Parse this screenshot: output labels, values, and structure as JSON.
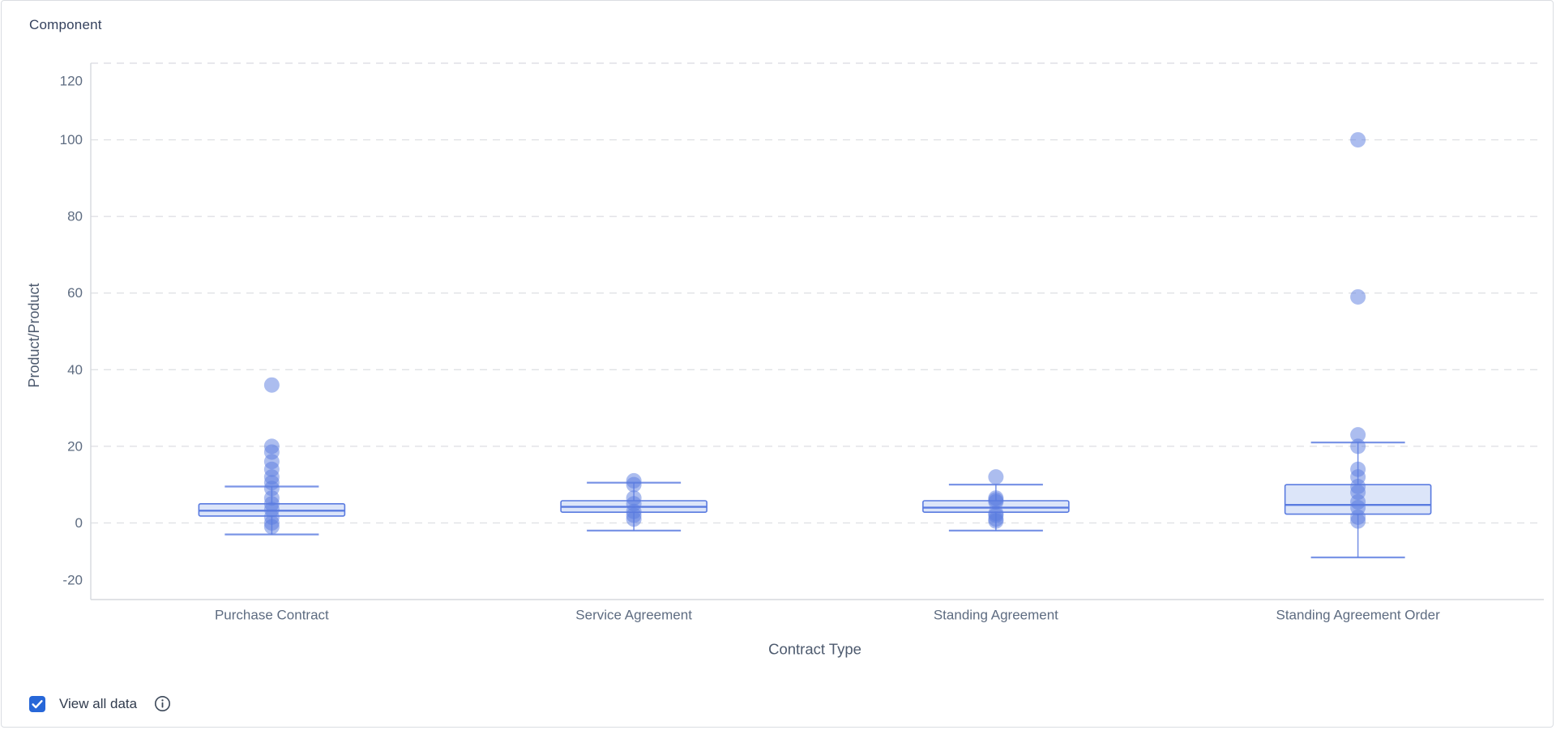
{
  "card": {
    "title": "Component"
  },
  "chart_data": {
    "type": "boxplot-scatter",
    "title": "Component",
    "xlabel": "Contract Type",
    "ylabel": "Product/Product",
    "ylim": [
      -20,
      120
    ],
    "yticks": [
      120,
      100,
      80,
      60,
      40,
      20,
      0,
      -20
    ],
    "grid": "horizontal-dashed",
    "legend": "none",
    "categories": [
      "Purchase Contract",
      "Service Agreement",
      "Standing Agreement",
      "Standing Agreement Order"
    ],
    "series": [
      {
        "name": "Purchase Contract",
        "box": {
          "whisker_low": -3,
          "q1": 1.8,
          "median": 3.2,
          "q3": 5,
          "whisker_high": 9.5
        },
        "points": [
          36,
          20,
          18.5,
          16,
          14,
          12,
          10.5,
          9,
          6.5,
          5,
          3.5,
          1.5,
          0,
          -1
        ]
      },
      {
        "name": "Service Agreement",
        "box": {
          "whisker_low": -2,
          "q1": 2.8,
          "median": 4.2,
          "q3": 5.8,
          "whisker_high": 10.5
        },
        "points": [
          11,
          10,
          6.5,
          5,
          3,
          2,
          1
        ]
      },
      {
        "name": "Standing Agreement",
        "box": {
          "whisker_low": -2,
          "q1": 2.8,
          "median": 4,
          "q3": 5.8,
          "whisker_high": 10
        },
        "points": [
          12,
          6.5,
          6,
          5.5,
          2.5,
          2,
          1,
          0.5
        ]
      },
      {
        "name": "Standing Agreement Order",
        "box": {
          "whisker_low": -9,
          "q1": 2.3,
          "median": 4.7,
          "q3": 10,
          "whisker_high": 21
        },
        "points": [
          100,
          59,
          23,
          20,
          14,
          12,
          9.5,
          8,
          5.5,
          4,
          1.5,
          0.5
        ]
      }
    ]
  },
  "controls": {
    "view_all": {
      "label": "View all data",
      "checked": true,
      "icon": "info-icon"
    }
  },
  "colors": {
    "accent_blue": "#5a7be0",
    "box_fill": "#dce5f9",
    "point_blue": "#5a7be0",
    "grid_line": "#e0e1e5",
    "axis_line": "#d6d9de",
    "tick_text": "#5e6c81",
    "axis_title_text": "#4d5a6e",
    "title_text": "#35425e",
    "checkbox_blue": "#2767d8",
    "info_icon": "#3c4859"
  }
}
